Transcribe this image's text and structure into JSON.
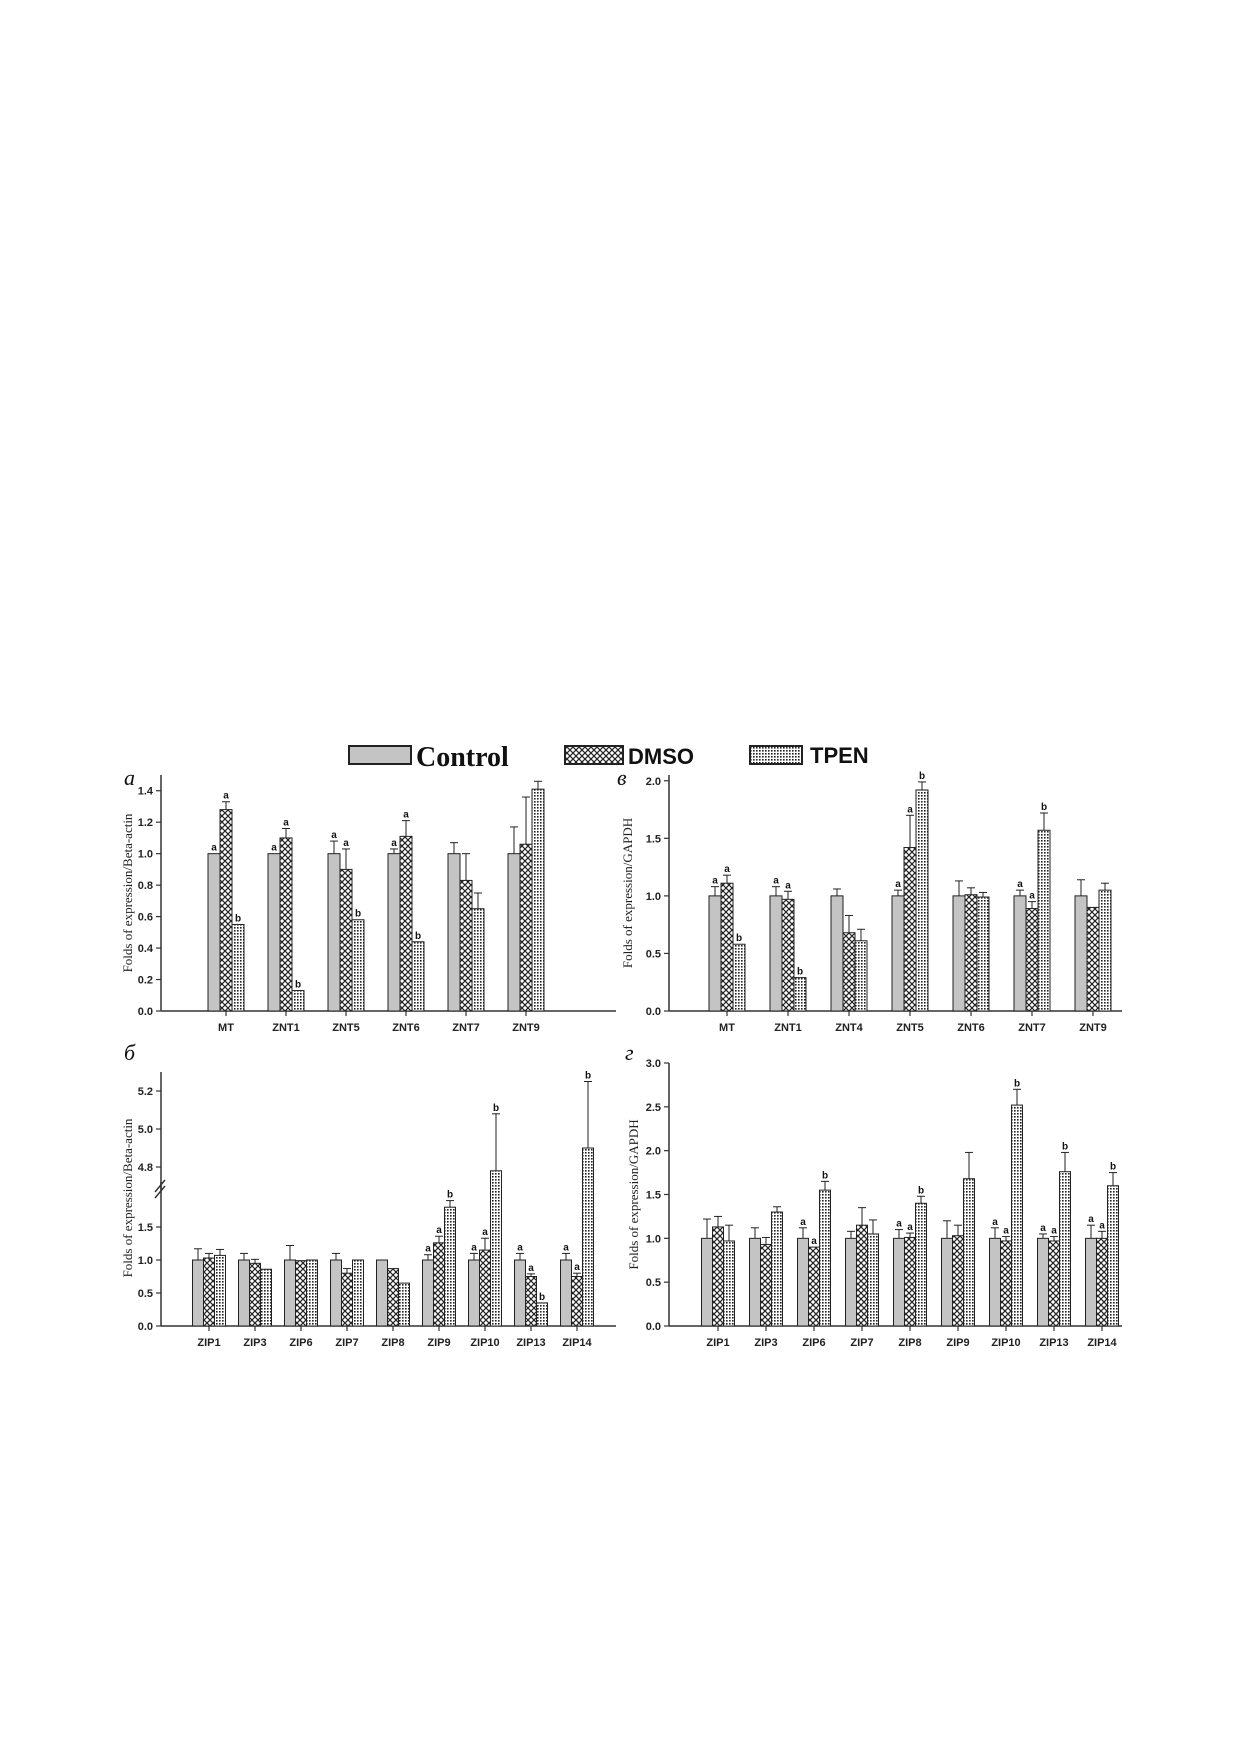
{
  "legend": {
    "items": [
      {
        "label": "Control",
        "pattern": "solid"
      },
      {
        "label": "DMSO",
        "pattern": "cross"
      },
      {
        "label": "TPEN",
        "pattern": "grid"
      }
    ]
  },
  "colors": {
    "control_fill": "#c4c4c4",
    "bar_stroke": "#222222",
    "axis": "#333333"
  },
  "chart_data": [
    {
      "type": "bar",
      "panel_label": "а",
      "ylabel": "Folds of expression/Beta-actin",
      "ylim": [
        0,
        1.5
      ],
      "yticks": [
        "0.0",
        "0.2",
        "0.4",
        "0.6",
        "0.8",
        "1.0",
        "1.2",
        "1.4"
      ],
      "categories": [
        "MT",
        "ZNT1",
        "ZNT5",
        "ZNT6",
        "ZNT7",
        "ZNT9"
      ],
      "series": [
        {
          "name": "Control",
          "values": [
            1.0,
            1.0,
            1.0,
            1.0,
            1.0,
            1.0
          ],
          "errors": [
            0,
            0,
            0.08,
            0.03,
            0.07,
            0.17
          ],
          "sig": [
            "a",
            "a",
            "a",
            "a",
            "",
            ""
          ]
        },
        {
          "name": "DMSO",
          "values": [
            1.28,
            1.1,
            0.9,
            1.11,
            0.83,
            1.06
          ],
          "errors": [
            0.05,
            0.06,
            0.13,
            0.1,
            0.17,
            0.3
          ],
          "sig": [
            "a",
            "a",
            "a",
            "a",
            "",
            ""
          ]
        },
        {
          "name": "TPEN",
          "values": [
            0.55,
            0.13,
            0.58,
            0.44,
            0.65,
            1.41
          ],
          "errors": [
            0,
            0,
            0,
            0,
            0.1,
            0.05
          ],
          "sig": [
            "b",
            "b",
            "b",
            "b",
            "",
            ""
          ]
        }
      ]
    },
    {
      "type": "bar",
      "panel_label": "в",
      "ylabel": "Folds of expression/GAPDH",
      "ylim": [
        0,
        2.05
      ],
      "yticks": [
        "0.0",
        "0.5",
        "1.0",
        "1.5",
        "2.0"
      ],
      "categories": [
        "MT",
        "ZNT1",
        "ZNT4",
        "ZNT5",
        "ZNT6",
        "ZNT7",
        "ZNT9"
      ],
      "series": [
        {
          "name": "Control",
          "values": [
            1.0,
            1.0,
            1.0,
            1.0,
            1.0,
            1.0,
            1.0
          ],
          "errors": [
            0.08,
            0.08,
            0.06,
            0.05,
            0.13,
            0.05,
            0.14
          ],
          "sig": [
            "a",
            "a",
            "",
            "a",
            "",
            "a",
            ""
          ]
        },
        {
          "name": "DMSO",
          "values": [
            1.11,
            0.97,
            0.68,
            1.42,
            1.01,
            0.89,
            0.9
          ],
          "errors": [
            0.07,
            0.07,
            0.15,
            0.28,
            0.06,
            0.06,
            0
          ],
          "sig": [
            "a",
            "a",
            "",
            "a",
            "",
            "a",
            ""
          ]
        },
        {
          "name": "TPEN",
          "values": [
            0.58,
            0.29,
            0.61,
            1.92,
            0.99,
            1.57,
            1.05
          ],
          "errors": [
            0,
            0,
            0.1,
            0.07,
            0.04,
            0.15,
            0.06
          ],
          "sig": [
            "b",
            "b",
            "",
            "b",
            "",
            "b",
            ""
          ]
        }
      ]
    },
    {
      "type": "bar",
      "panel_label": "б",
      "ylabel": "Folds of expression/Beta-actin",
      "ylim_lower": [
        0,
        2.0
      ],
      "ylim_upper": [
        4.7,
        5.3
      ],
      "axis_break": true,
      "yticks": [
        "0.0",
        "0.5",
        "1.0",
        "1.5",
        "4.8",
        "5.0",
        "5.2"
      ],
      "categories": [
        "ZIP1",
        "ZIP3",
        "ZIP6",
        "ZIP7",
        "ZIP8",
        "ZIP9",
        "ZIP10",
        "ZIP13",
        "ZIP14"
      ],
      "series": [
        {
          "name": "Control",
          "values": [
            1.0,
            1.0,
            1.0,
            1.0,
            1.0,
            1.0,
            1.0,
            1.0,
            1.0
          ],
          "errors": [
            0.17,
            0.1,
            0.22,
            0.1,
            0,
            0.08,
            0.1,
            0.1,
            0.1
          ],
          "sig": [
            "",
            "",
            "",
            "",
            "",
            "a",
            "a",
            "a",
            "a"
          ]
        },
        {
          "name": "DMSO",
          "values": [
            1.03,
            0.95,
            0.99,
            0.8,
            0.87,
            1.26,
            1.15,
            0.75,
            0.75
          ],
          "errors": [
            0.07,
            0.06,
            0,
            0.07,
            0,
            0.1,
            0.18,
            0.04,
            0.05
          ],
          "sig": [
            "",
            "",
            "",
            "",
            "",
            "a",
            "a",
            "a",
            "a"
          ]
        },
        {
          "name": "TPEN",
          "values": [
            1.07,
            0.86,
            1.0,
            1.0,
            0.65,
            1.8,
            4.78,
            0.35,
            4.9
          ],
          "errors": [
            0.09,
            0,
            0,
            0,
            0,
            0.1,
            0.3,
            0,
            0.35
          ],
          "sig": [
            "",
            "",
            "",
            "",
            "",
            "b",
            "b",
            "b",
            "b"
          ]
        }
      ]
    },
    {
      "type": "bar",
      "panel_label": "г",
      "ylabel": "Folds of expression/GAPDH",
      "ylim": [
        0,
        3.0
      ],
      "yticks": [
        "0.0",
        "0.5",
        "1.0",
        "1.5",
        "2.0",
        "2.5",
        "3.0"
      ],
      "categories": [
        "ZIP1",
        "ZIP3",
        "ZIP6",
        "ZIP7",
        "ZIP8",
        "ZIP9",
        "ZIP10",
        "ZIP13",
        "ZIP14"
      ],
      "series": [
        {
          "name": "Control",
          "values": [
            1.0,
            1.0,
            1.0,
            1.0,
            1.0,
            1.0,
            1.0,
            1.0,
            1.0
          ],
          "errors": [
            0.22,
            0.12,
            0.12,
            0.08,
            0.1,
            0.2,
            0.12,
            0.05,
            0.15
          ],
          "sig": [
            "",
            "",
            "a",
            "",
            "a",
            "",
            "a",
            "a",
            "a"
          ]
        },
        {
          "name": "DMSO",
          "values": [
            1.13,
            0.93,
            0.9,
            1.15,
            1.01,
            1.03,
            0.97,
            0.97,
            1.0
          ],
          "errors": [
            0.12,
            0.08,
            0,
            0.2,
            0.05,
            0.12,
            0.05,
            0.05,
            0.08
          ],
          "sig": [
            "",
            "",
            "a",
            "",
            "a",
            "",
            "a",
            "a",
            "a"
          ]
        },
        {
          "name": "TPEN",
          "values": [
            0.97,
            1.3,
            1.55,
            1.05,
            1.4,
            1.68,
            2.52,
            1.76,
            1.6
          ],
          "errors": [
            0.18,
            0.06,
            0.1,
            0.16,
            0.08,
            0.3,
            0.18,
            0.22,
            0.15
          ],
          "sig": [
            "",
            "",
            "b",
            "",
            "b",
            "",
            "b",
            "b",
            "b"
          ]
        }
      ]
    }
  ]
}
